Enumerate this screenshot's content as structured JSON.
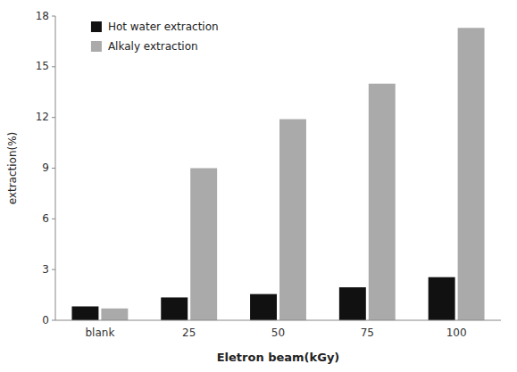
{
  "chart_data": {
    "type": "bar",
    "categories": [
      "blank",
      "25",
      "50",
      "75",
      "100"
    ],
    "series": [
      {
        "name": "Hot water extraction",
        "color": "#111111",
        "values": [
          0.82,
          1.35,
          1.55,
          1.95,
          2.55
        ]
      },
      {
        "name": "Alkaly extraction",
        "color": "#aaaaaa",
        "values": [
          0.7,
          9.0,
          11.9,
          14.0,
          17.3
        ]
      }
    ],
    "xlabel": "Eletron beam(kGy)",
    "ylabel": "extraction(%)",
    "ylim": [
      0,
      18
    ],
    "yticks": [
      0,
      3,
      6,
      9,
      12,
      15,
      18
    ],
    "grid": false,
    "legend": "upper left"
  }
}
